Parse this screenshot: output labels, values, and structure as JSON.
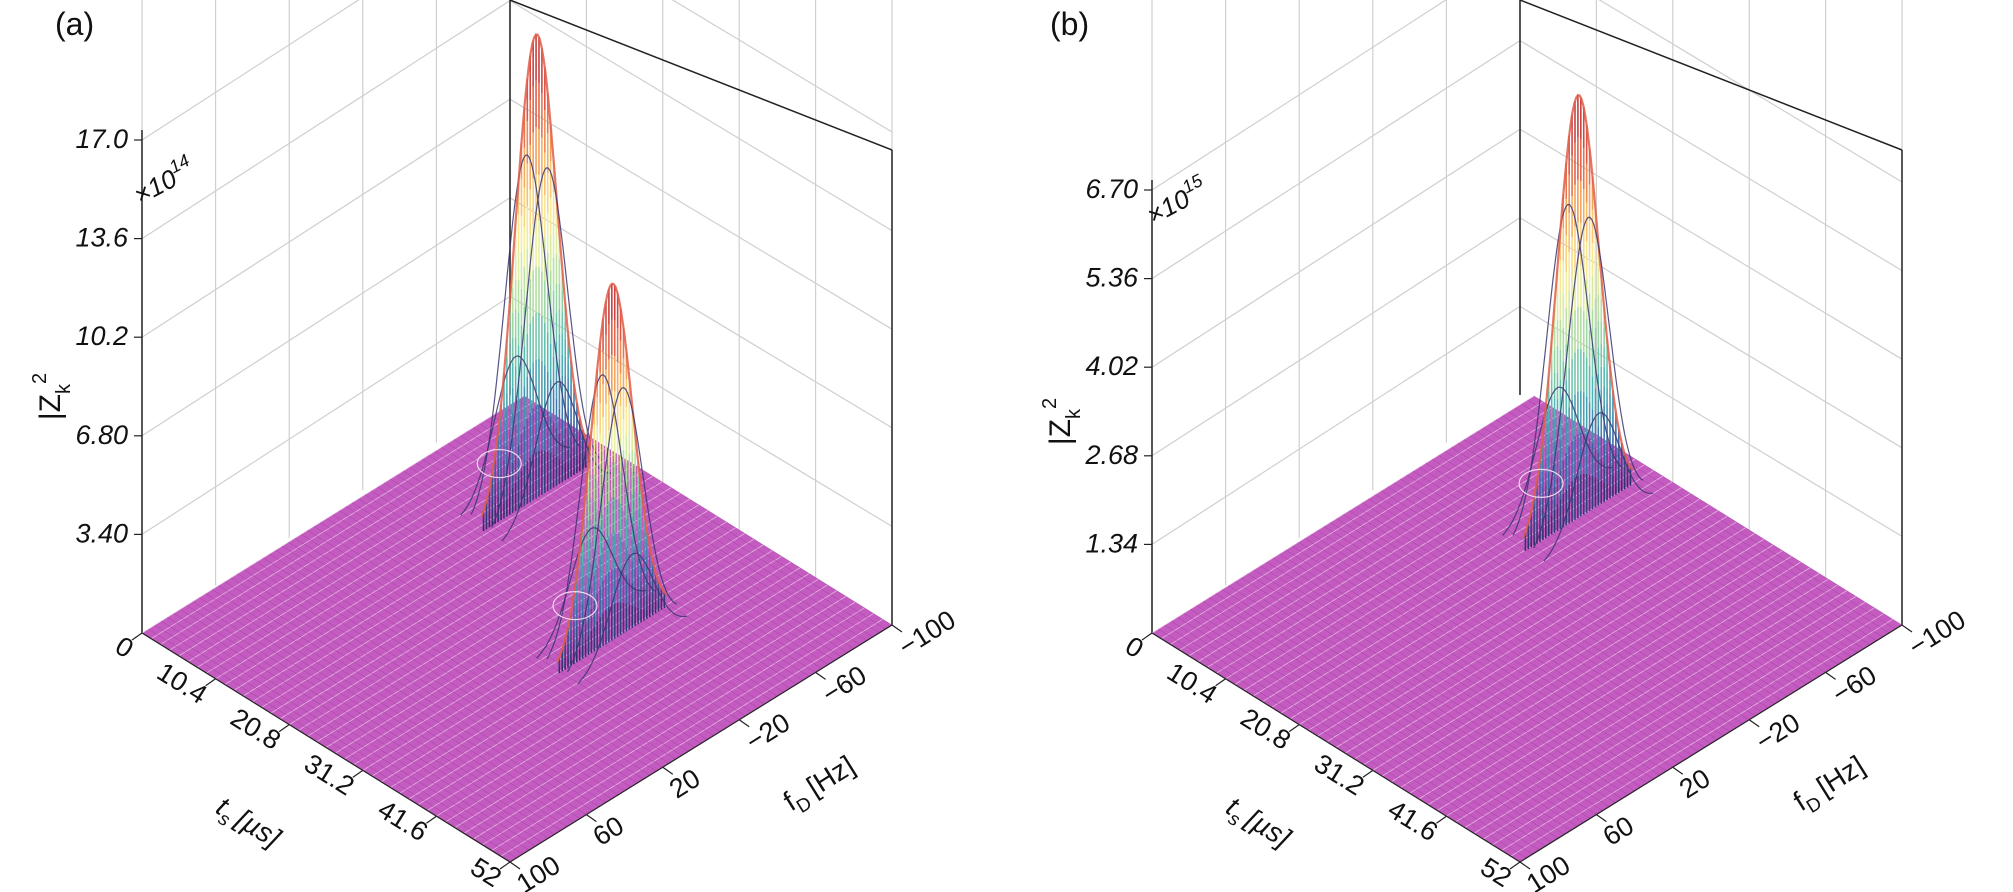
{
  "chart_data": [
    {
      "type": "surface",
      "panel_label": "(a)",
      "z_multiplier": "×10",
      "z_multiplier_exp": "14",
      "zlabel_main": "|Z",
      "zlabel_sub": "k",
      "zlabel_sup": "2",
      "z_ticks": [
        "3.40",
        "6.80",
        "10.2",
        "13.6",
        "17.0"
      ],
      "zlim": [
        0,
        17.0
      ],
      "ts_label_main": "t",
      "ts_label_sub": "s",
      "ts_label_unit": "[µs]",
      "ts_ticks": [
        "0",
        "10.4",
        "20.8",
        "31.2",
        "41.6",
        "52"
      ],
      "ts_lim": [
        0,
        52
      ],
      "fd_label_main": "f",
      "fd_label_sub": "D",
      "fd_label_unit": "[Hz]",
      "fd_ticks": [
        "100",
        "60",
        "20",
        "−20",
        "−60",
        "−100"
      ],
      "fd_lim": [
        100,
        -100
      ],
      "peaks": [
        {
          "ts": 12.5,
          "fd": -60,
          "height": 16.0
        },
        {
          "ts": 34.0,
          "fd": -20,
          "height": 12.3
        }
      ],
      "grid": true
    },
    {
      "type": "surface",
      "panel_label": "(b)",
      "z_multiplier": "×10",
      "z_multiplier_exp": "15",
      "zlabel_main": "|Z",
      "zlabel_sub": "k",
      "zlabel_sup": "2",
      "z_ticks": [
        "1.34",
        "2.68",
        "4.02",
        "5.36",
        "6.70"
      ],
      "zlim": [
        0,
        6.7
      ],
      "ts_label_main": "t",
      "ts_label_sub": "s",
      "ts_label_unit": "[µs]",
      "ts_ticks": [
        "0",
        "10.4",
        "20.8",
        "31.2",
        "41.6",
        "52"
      ],
      "ts_lim": [
        0,
        52
      ],
      "fd_label_main": "f",
      "fd_label_sub": "D",
      "fd_label_unit": "[Hz]",
      "fd_ticks": [
        "100",
        "60",
        "20",
        "−20",
        "−60",
        "−100"
      ],
      "fd_lim": [
        100,
        -100
      ],
      "peaks": [
        {
          "ts": 17.0,
          "fd": -60,
          "height": 6.4
        }
      ],
      "grid": true
    }
  ],
  "colors": {
    "surface_floor": "#c45bc0",
    "surface_floor_dark": "#9a3f98",
    "grid": "#cfcfcf",
    "colormap": [
      "#2c2a66",
      "#3b6fae",
      "#4fb8b4",
      "#a6dba0",
      "#f7f3a2",
      "#f8b45e",
      "#e05a48",
      "#b8303b"
    ]
  }
}
